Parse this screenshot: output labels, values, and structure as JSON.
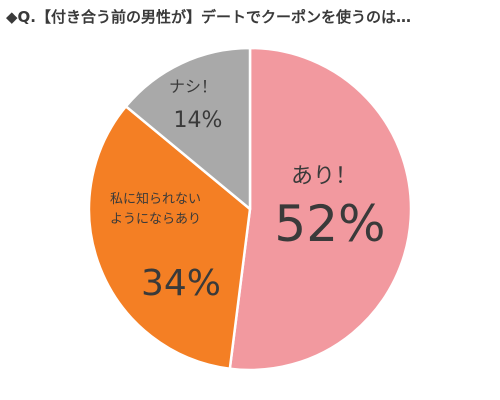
{
  "title": "◆Q.【付き合う前の男性が】デートでクーポンを使うのは…",
  "chart_data": {
    "type": "pie",
    "title": "◆Q.【付き合う前の男性が】デートでクーポンを使うのは…",
    "slices": [
      {
        "label": "あり！",
        "value": 52,
        "display": "52%",
        "color": "#f2999f"
      },
      {
        "label": "私に知られないようにならあり",
        "label_lines": [
          "私に知られない",
          "ようにならあり"
        ],
        "value": 34,
        "display": "34%",
        "color": "#f47f24"
      },
      {
        "label": "ナシ！",
        "value": 14,
        "display": "14%",
        "color": "#a9a9a9"
      }
    ]
  }
}
